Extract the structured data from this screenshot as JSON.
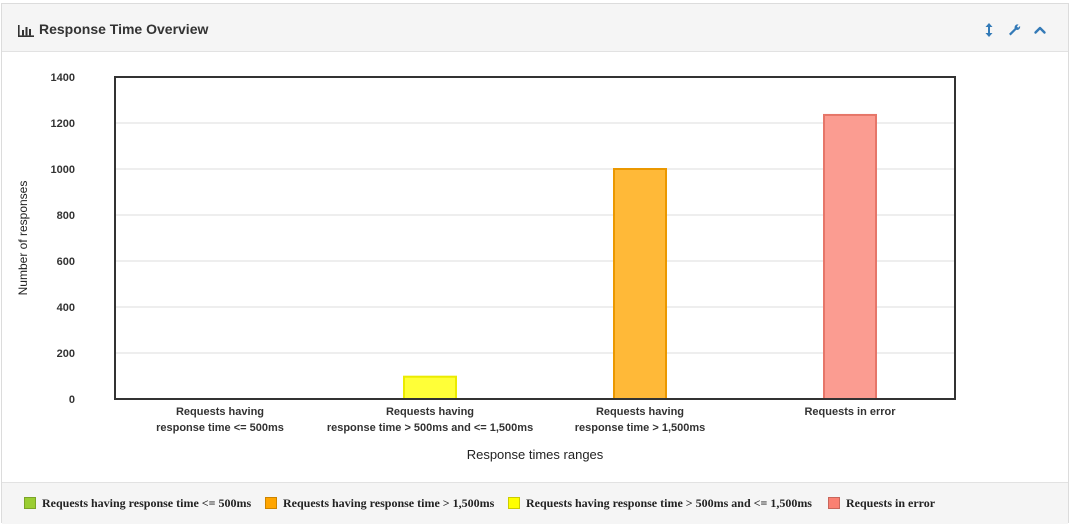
{
  "panel": {
    "title": "Response Time Overview",
    "title_icon": "bar-chart-icon",
    "tools": [
      "resize-vertical-icon",
      "wrench-icon",
      "chevron-up-icon"
    ]
  },
  "colors": {
    "accent": "#337ab7",
    "le500": "#9acd32",
    "gt500_le1500": "#ffff00",
    "gt1500": "#ffa500",
    "error": "#fa8072"
  },
  "chart_data": {
    "type": "bar",
    "title": "",
    "xlabel": "Response times ranges",
    "ylabel": "Number of responses",
    "ylim": [
      0,
      1400
    ],
    "yticks": [
      0,
      200,
      400,
      600,
      800,
      1000,
      1200,
      1400
    ],
    "grid": true,
    "categories": [
      {
        "lines": [
          "Requests having",
          "response time <= 500ms"
        ],
        "color_key": "le500"
      },
      {
        "lines": [
          "Requests having",
          "response time > 500ms and <= 1,500ms"
        ],
        "color_key": "gt500_le1500"
      },
      {
        "lines": [
          "Requests having",
          "response time > 1,500ms"
        ],
        "color_key": "gt1500"
      },
      {
        "lines": [
          "Requests in error"
        ],
        "color_key": "error"
      }
    ],
    "values": [
      0,
      97,
      1000,
      1235
    ],
    "legend_placement": "bottom",
    "legend": [
      {
        "label": "Requests having response time <= 500ms",
        "color_key": "le500"
      },
      {
        "label": "Requests having response time > 1,500ms",
        "color_key": "gt1500"
      },
      {
        "label": "Requests having response time > 500ms and <= 1,500ms",
        "color_key": "gt500_le1500"
      },
      {
        "label": "Requests in error",
        "color_key": "error"
      }
    ]
  }
}
